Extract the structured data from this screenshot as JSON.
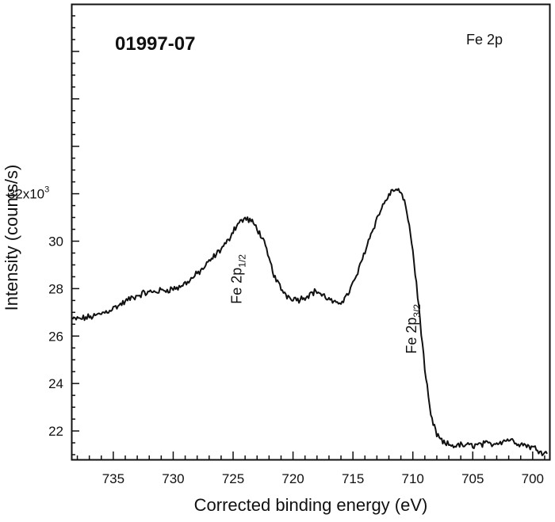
{
  "chart_data": {
    "type": "line",
    "title": "01997-07",
    "region_label": "Fe 2p",
    "xlabel": "Corrected binding energy (eV)",
    "ylabel": "Intensity (counts/s)",
    "x_reversed": true,
    "xlim": [
      738.5,
      698.6
    ],
    "ylim": [
      20.8,
      40.0
    ],
    "y_multiplier_label": "x10",
    "y_multiplier_exp": "3",
    "x_ticks": [
      735,
      730,
      725,
      720,
      715,
      710,
      705,
      700
    ],
    "y_ticks": [
      22,
      24,
      26,
      28,
      30,
      32
    ],
    "y_tick_labels": [
      "22",
      "24",
      "26",
      "28",
      "30",
      "32"
    ],
    "annotations": [
      {
        "name": "fe-2p-half",
        "main": "Fe 2p",
        "sub": "1/2",
        "x": 724.3,
        "y": 28.4
      },
      {
        "name": "fe-2p-three-half",
        "main": "Fe 2p",
        "sub": "3/2",
        "x": 709.7,
        "y": 26.3
      }
    ],
    "series": [
      {
        "name": "Fe 2p spectrum",
        "x": [
          738.4,
          737.5,
          736.5,
          735.5,
          734.5,
          733.5,
          732.5,
          731.5,
          730.5,
          729.5,
          728.5,
          727.5,
          726.5,
          725.5,
          725.0,
          724.5,
          724.0,
          723.5,
          723.0,
          722.5,
          722.0,
          721.5,
          721.0,
          720.5,
          720.0,
          719.5,
          719.0,
          718.5,
          718.0,
          717.5,
          717.0,
          716.5,
          716.0,
          715.5,
          715.0,
          714.5,
          714.0,
          713.5,
          713.0,
          712.5,
          712.0,
          711.5,
          711.0,
          710.5,
          710.0,
          709.5,
          709.0,
          708.5,
          708.0,
          707.5,
          707.0,
          706.5,
          706.0,
          705.5,
          705.0,
          704.5,
          704.0,
          703.5,
          703.0,
          702.5,
          702.0,
          701.5,
          701.0,
          700.5,
          700.0,
          699.5,
          699.0,
          698.7
        ],
        "y": [
          26.7,
          26.75,
          26.85,
          27.05,
          27.3,
          27.6,
          27.8,
          27.88,
          27.95,
          28.05,
          28.4,
          28.85,
          29.4,
          29.95,
          30.45,
          30.8,
          30.95,
          30.85,
          30.55,
          30.05,
          29.25,
          28.45,
          28.0,
          27.7,
          27.6,
          27.55,
          27.65,
          27.8,
          27.9,
          27.7,
          27.55,
          27.35,
          27.45,
          27.7,
          28.2,
          28.8,
          29.6,
          30.3,
          30.95,
          31.5,
          31.95,
          32.2,
          32.05,
          31.3,
          29.6,
          27.2,
          24.6,
          22.6,
          21.85,
          21.5,
          21.42,
          21.38,
          21.4,
          21.38,
          21.4,
          21.42,
          21.45,
          21.45,
          21.5,
          21.58,
          21.65,
          21.55,
          21.45,
          21.4,
          21.3,
          21.2,
          21.08,
          21.0
        ]
      }
    ]
  }
}
